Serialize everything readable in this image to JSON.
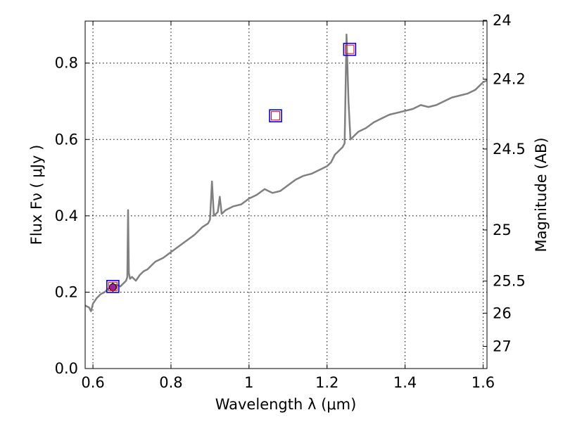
{
  "chart_data": {
    "type": "line",
    "xlabel": "Wavelength  λ (μm)",
    "ylabel": "Flux  Fν  ( μJy )",
    "ylabel_right": "Magnitude (AB)",
    "xlim": [
      0.58,
      1.61
    ],
    "ylim": [
      0.0,
      0.91
    ],
    "grid": true,
    "x_ticks": [
      {
        "value": 0.6,
        "label": "0.6"
      },
      {
        "value": 0.8,
        "label": "0.8"
      },
      {
        "value": 1.0,
        "label": "1"
      },
      {
        "value": 1.2,
        "label": "1.2"
      },
      {
        "value": 1.4,
        "label": "1.4"
      },
      {
        "value": 1.6,
        "label": "1.6"
      }
    ],
    "y_ticks": [
      {
        "value": 0.0,
        "label": "0.0"
      },
      {
        "value": 0.2,
        "label": "0.2"
      },
      {
        "value": 0.4,
        "label": "0.4"
      },
      {
        "value": 0.6,
        "label": "0.6"
      },
      {
        "value": 0.8,
        "label": "0.8"
      }
    ],
    "magnitude_ticks": [
      {
        "flux": 0.912,
        "label": "24"
      },
      {
        "flux": 0.758,
        "label": "24.2"
      },
      {
        "flux": 0.575,
        "label": "24.5"
      },
      {
        "flux": 0.363,
        "label": "25"
      },
      {
        "flux": 0.229,
        "label": "25.5"
      },
      {
        "flux": 0.145,
        "label": "26"
      },
      {
        "flux": 0.058,
        "label": "27"
      }
    ],
    "series": [
      {
        "color": "#808080",
        "x": [
          0.58,
          0.59,
          0.595,
          0.6,
          0.61,
          0.62,
          0.63,
          0.64,
          0.65,
          0.66,
          0.67,
          0.68,
          0.685,
          0.688,
          0.69,
          0.692,
          0.695,
          0.7,
          0.71,
          0.72,
          0.73,
          0.74,
          0.75,
          0.76,
          0.78,
          0.8,
          0.82,
          0.84,
          0.86,
          0.88,
          0.895,
          0.9,
          0.905,
          0.91,
          0.92,
          0.925,
          0.93,
          0.94,
          0.96,
          0.98,
          1.0,
          1.02,
          1.04,
          1.06,
          1.08,
          1.1,
          1.12,
          1.14,
          1.16,
          1.18,
          1.2,
          1.21,
          1.22,
          1.23,
          1.24,
          1.245,
          1.25,
          1.255,
          1.26,
          1.27,
          1.28,
          1.3,
          1.32,
          1.34,
          1.36,
          1.38,
          1.4,
          1.42,
          1.44,
          1.46,
          1.48,
          1.5,
          1.52,
          1.54,
          1.56,
          1.58,
          1.6,
          1.61
        ],
        "y": [
          0.165,
          0.16,
          0.15,
          0.17,
          0.185,
          0.195,
          0.2,
          0.21,
          0.215,
          0.22,
          0.215,
          0.225,
          0.23,
          0.24,
          0.415,
          0.25,
          0.235,
          0.24,
          0.23,
          0.245,
          0.255,
          0.26,
          0.27,
          0.28,
          0.29,
          0.305,
          0.32,
          0.335,
          0.35,
          0.37,
          0.38,
          0.39,
          0.49,
          0.4,
          0.41,
          0.45,
          0.405,
          0.415,
          0.425,
          0.43,
          0.445,
          0.455,
          0.47,
          0.46,
          0.465,
          0.48,
          0.495,
          0.505,
          0.51,
          0.52,
          0.53,
          0.54,
          0.56,
          0.57,
          0.58,
          0.59,
          0.875,
          0.7,
          0.6,
          0.61,
          0.62,
          0.63,
          0.645,
          0.655,
          0.665,
          0.67,
          0.675,
          0.68,
          0.69,
          0.685,
          0.69,
          0.7,
          0.71,
          0.715,
          0.72,
          0.73,
          0.75,
          0.755
        ]
      }
    ],
    "photometry_squares": [
      {
        "x": 0.651,
        "y": 0.215,
        "outer_color": "#0000ff",
        "inner_color": "#ff0000"
      },
      {
        "x": 1.068,
        "y": 0.662,
        "outer_color": "#0000ff",
        "inner_color": "#ff0000"
      },
      {
        "x": 1.258,
        "y": 0.836,
        "outer_color": "#0000ff",
        "inner_color": "#ff0000"
      }
    ],
    "measurement_points": [
      {
        "x": 0.651,
        "y": 0.213,
        "error": 0.012,
        "color": "#a020a0"
      }
    ]
  }
}
